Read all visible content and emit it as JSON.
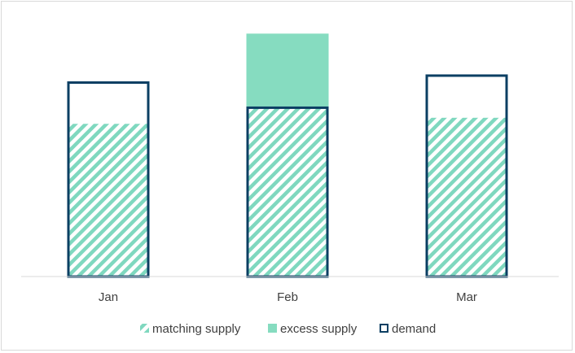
{
  "chart_data": {
    "type": "bar",
    "categories": [
      "Jan",
      "Feb",
      "Mar"
    ],
    "series": [
      {
        "name": "matching supply",
        "values": [
          176,
          196,
          183
        ]
      },
      {
        "name": "excess supply",
        "values": [
          0,
          84,
          0
        ]
      },
      {
        "name": "demand",
        "values": [
          225,
          196,
          233
        ]
      }
    ],
    "ylim": [
      0,
      300
    ],
    "grid": false,
    "legend_position": "bottom",
    "colors": {
      "matching_supply": "#7fd8bf",
      "excess_supply": "#86dcc0",
      "demand": "#0b3f63",
      "axis": "#d9d9d9"
    }
  }
}
